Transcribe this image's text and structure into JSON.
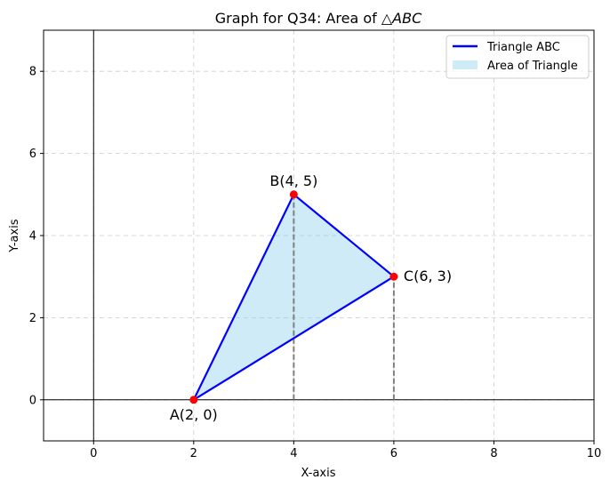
{
  "chart_data": {
    "type": "line",
    "title": "Graph for Q34: Area of △ABC",
    "title_parts": {
      "prefix": "Graph for Q34: Area of ",
      "triangle": "△",
      "math": "ABC"
    },
    "xlabel": "X-axis",
    "ylabel": "Y-axis",
    "xlim": [
      -1,
      10
    ],
    "ylim": [
      -1,
      9
    ],
    "xticks": [
      0,
      2,
      4,
      6,
      8,
      10
    ],
    "yticks": [
      0,
      2,
      4,
      6,
      8
    ],
    "grid": true,
    "legend_position": "top-right",
    "series": [
      {
        "name": "Triangle ABC",
        "kind": "line",
        "color": "#0000ff",
        "x": [
          2,
          4,
          6,
          2
        ],
        "y": [
          0,
          5,
          3,
          0
        ]
      },
      {
        "name": "Area of Triangle",
        "kind": "fill",
        "color": "#87ceeb",
        "x": [
          2,
          4,
          6
        ],
        "y": [
          0,
          5,
          3
        ]
      }
    ],
    "points": [
      {
        "label": "A(2, 0)",
        "x": 2,
        "y": 0
      },
      {
        "label": "B(4, 5)",
        "x": 4,
        "y": 5
      },
      {
        "label": "C(6, 3)",
        "x": 6,
        "y": 3
      }
    ],
    "dropdown_lines": [
      {
        "x": 4,
        "y_from": 0,
        "y_to": 5
      },
      {
        "x": 6,
        "y_from": 0,
        "y_to": 3
      }
    ],
    "reference_lines": {
      "x_axis_at_y": 0,
      "y_axis_at_x": 0
    },
    "colors": {
      "point": "#ff0000",
      "dropdown": "#808080",
      "grid": "#cccccc"
    }
  }
}
